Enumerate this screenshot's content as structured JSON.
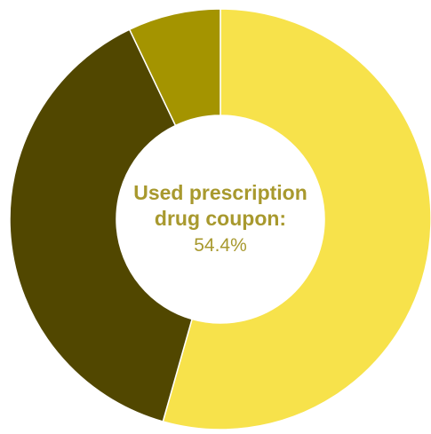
{
  "chart_data": {
    "type": "pie",
    "donut": true,
    "slices": [
      {
        "value": 54.4,
        "color": "#f7e24b"
      },
      {
        "value": 38.5,
        "color": "#514700"
      },
      {
        "value": 7.1,
        "color": "#a49400"
      }
    ],
    "center_label": {
      "title": "Used prescription drug coupon:",
      "value": "54.4%"
    },
    "label_color": "#a8992e",
    "background": "#ffffff"
  }
}
